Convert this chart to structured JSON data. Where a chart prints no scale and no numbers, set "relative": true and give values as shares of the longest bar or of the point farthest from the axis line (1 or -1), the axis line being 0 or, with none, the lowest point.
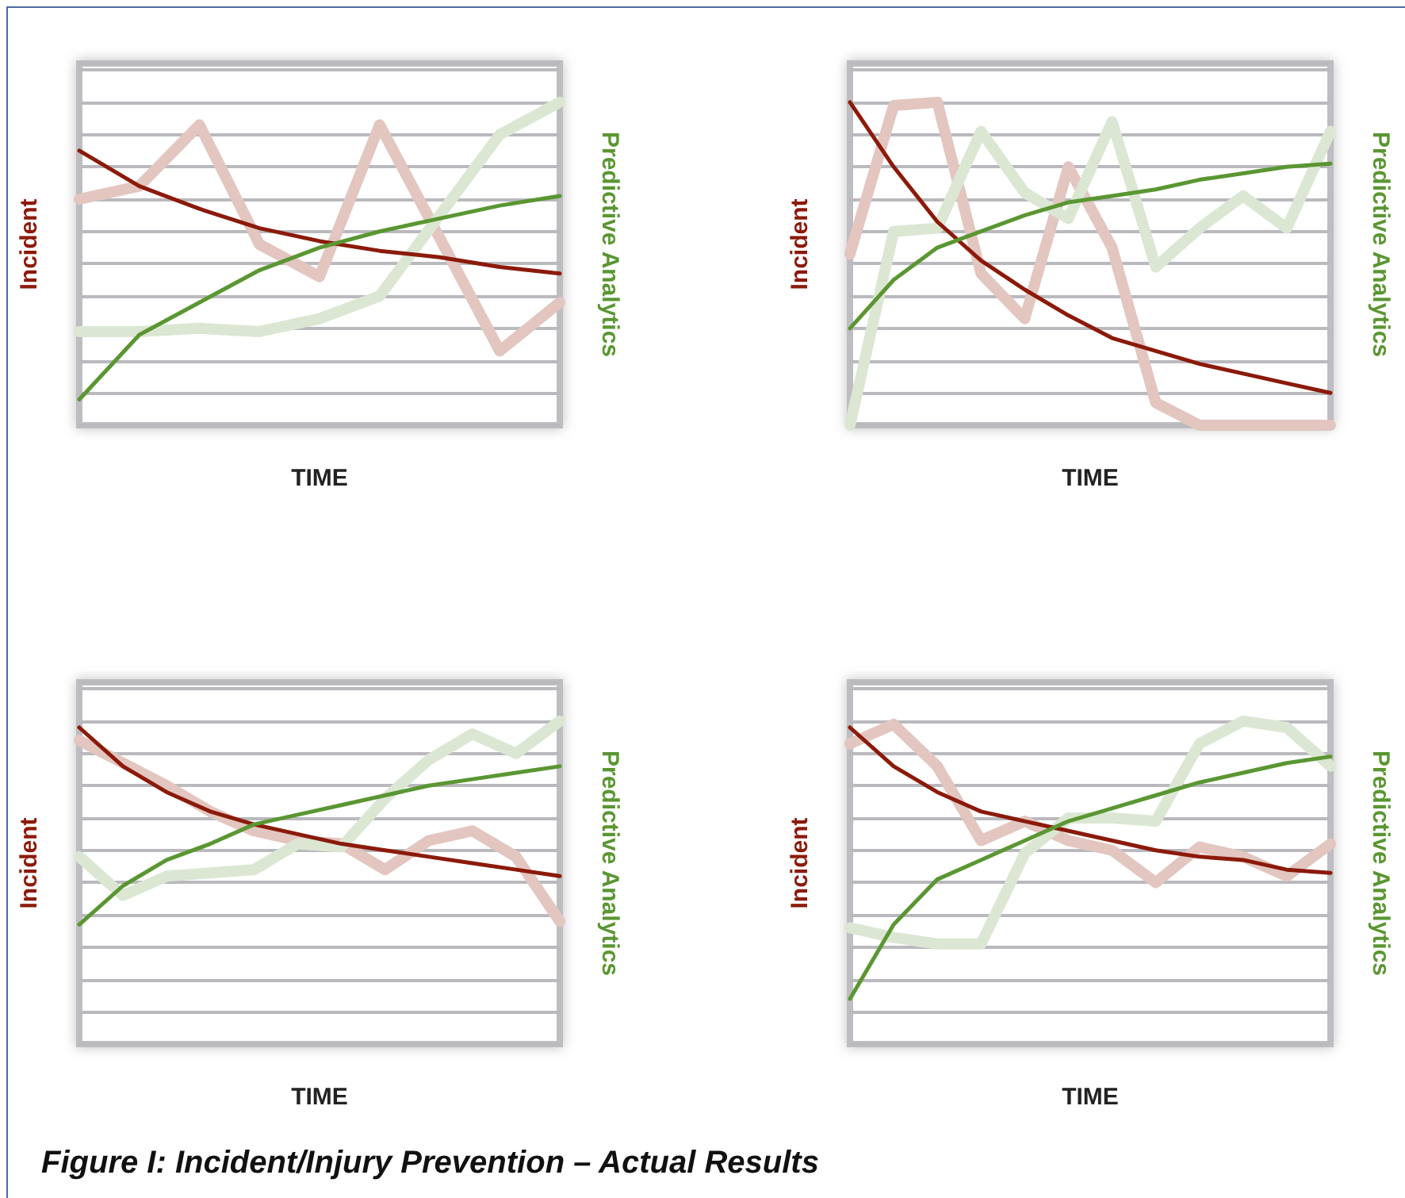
{
  "chart_data": [
    {
      "type": "line",
      "xlabel": "TIME",
      "ylabel": "Incident",
      "y2label": "Predictive Analytics",
      "relative": true,
      "grid": "y",
      "marker": "none",
      "categories": [
        null,
        null,
        null,
        null,
        null,
        null,
        null,
        null,
        null
      ],
      "series": [
        {
          "color": "#e3c6c0",
          "values": [
            0.7,
            0.74,
            0.93,
            0.56,
            0.46,
            0.93,
            0.58,
            0.23,
            0.38
          ]
        },
        {
          "color": "#8b1a0a",
          "values": [
            0.85,
            0.74,
            0.67,
            0.61,
            0.57,
            0.54,
            0.52,
            0.49,
            0.47
          ]
        },
        {
          "color": "#dbe7d3",
          "values": [
            0.29,
            0.29,
            0.3,
            0.29,
            0.33,
            0.4,
            0.65,
            0.9,
            1
          ]
        },
        {
          "color": "#5a9632",
          "values": [
            0.08,
            0.28,
            0.38,
            0.48,
            0.55,
            0.6,
            0.64,
            0.68,
            0.71
          ]
        }
      ]
    },
    {
      "type": "line",
      "xlabel": "TIME",
      "ylabel": "Incident",
      "y2label": "Predictive Analytics",
      "relative": true,
      "grid": "y",
      "marker": "none",
      "categories": [
        null,
        null,
        null,
        null,
        null,
        null,
        null,
        null,
        null,
        null,
        null,
        null
      ],
      "series": [
        {
          "color": "#e3c6c0",
          "values": [
            0.53,
            0.99,
            1,
            0.47,
            0.33,
            0.8,
            0.55,
            0.07,
            0,
            0,
            0,
            0
          ]
        },
        {
          "color": "#8b1a0a",
          "values": [
            1,
            0.8,
            0.63,
            0.51,
            0.42,
            0.34,
            0.27,
            0.23,
            0.19,
            0.16,
            0.13,
            0.1
          ]
        },
        {
          "color": "#dbe7d3",
          "values": [
            0,
            0.6,
            0.61,
            0.91,
            0.72,
            0.64,
            0.94,
            0.49,
            0.61,
            0.71,
            0.61,
            0.91
          ]
        },
        {
          "color": "#5a9632",
          "values": [
            0.3,
            0.45,
            0.55,
            0.6,
            0.65,
            0.69,
            0.71,
            0.73,
            0.76,
            0.78,
            0.8,
            0.81
          ]
        }
      ]
    },
    {
      "type": "line",
      "xlabel": "TIME",
      "ylabel": "Incident",
      "y2label": "Predictive Analytics",
      "relative": true,
      "grid": "y",
      "marker": "none",
      "categories": [
        null,
        null,
        null,
        null,
        null,
        null,
        null,
        null,
        null,
        null,
        null,
        null
      ],
      "series": [
        {
          "color": "#e3c6c0",
          "values": [
            0.94,
            0.87,
            0.8,
            0.72,
            0.66,
            0.63,
            0.62,
            0.54,
            0.63,
            0.66,
            0.58,
            0.38
          ]
        },
        {
          "color": "#8b1a0a",
          "values": [
            0.98,
            0.86,
            0.78,
            0.72,
            0.68,
            0.65,
            0.62,
            0.6,
            0.58,
            0.56,
            0.54,
            0.52
          ]
        },
        {
          "color": "#dbe7d3",
          "values": [
            0.58,
            0.46,
            0.52,
            0.53,
            0.54,
            0.62,
            0.61,
            0.76,
            0.88,
            0.96,
            0.9,
            1
          ]
        },
        {
          "color": "#5a9632",
          "values": [
            0.37,
            0.49,
            0.57,
            0.62,
            0.68,
            0.71,
            0.74,
            0.77,
            0.8,
            0.82,
            0.84,
            0.86
          ]
        }
      ]
    },
    {
      "type": "line",
      "xlabel": "TIME",
      "ylabel": "Incident",
      "y2label": "Predictive Analytics",
      "relative": true,
      "grid": "y",
      "marker": "none",
      "categories": [
        null,
        null,
        null,
        null,
        null,
        null,
        null,
        null,
        null,
        null,
        null,
        null
      ],
      "annotations": [
        "Figure I: Incident/Injury Prevention – Actual Results"
      ],
      "series": [
        {
          "color": "#e3c6c0",
          "values": [
            0.93,
            0.99,
            0.86,
            0.63,
            0.69,
            0.63,
            0.6,
            0.5,
            0.61,
            0.58,
            0.52,
            0.62
          ]
        },
        {
          "color": "#8b1a0a",
          "values": [
            0.98,
            0.86,
            0.78,
            0.72,
            0.69,
            0.66,
            0.63,
            0.6,
            0.58,
            0.57,
            0.54,
            0.53
          ]
        },
        {
          "color": "#dbe7d3",
          "values": [
            0.36,
            0.33,
            0.31,
            0.31,
            0.59,
            0.7,
            0.7,
            0.69,
            0.93,
            1,
            0.98,
            0.86
          ]
        },
        {
          "color": "#5a9632",
          "values": [
            0.14,
            0.37,
            0.51,
            0.57,
            0.63,
            0.69,
            0.73,
            0.77,
            0.81,
            0.84,
            0.87,
            0.89
          ]
        }
      ]
    }
  ]
}
